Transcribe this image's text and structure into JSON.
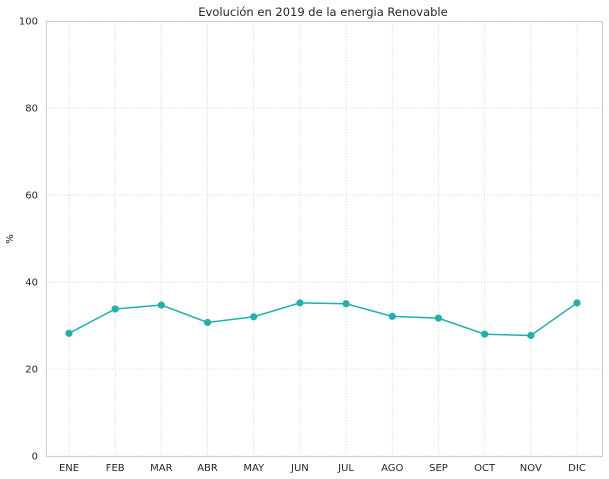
{
  "chart_data": {
    "type": "line",
    "title": "Evolución en 2019 de la energia Renovable",
    "xlabel": "",
    "ylabel": "%",
    "categories": [
      "ENE",
      "FEB",
      "MAR",
      "ABR",
      "MAY",
      "JUN",
      "JUL",
      "AGO",
      "SEP",
      "OCT",
      "NOV",
      "DIC"
    ],
    "series": [
      {
        "values": [
          28.2,
          33.8,
          34.7,
          30.7,
          32.0,
          35.2,
          35.0,
          32.1,
          31.7,
          28.0,
          27.7,
          35.2
        ],
        "color": "#20b2aa"
      }
    ],
    "ylim": [
      0,
      100
    ],
    "yticks": [
      0,
      20,
      40,
      60,
      80,
      100
    ],
    "grid": true,
    "marker": "circle"
  }
}
